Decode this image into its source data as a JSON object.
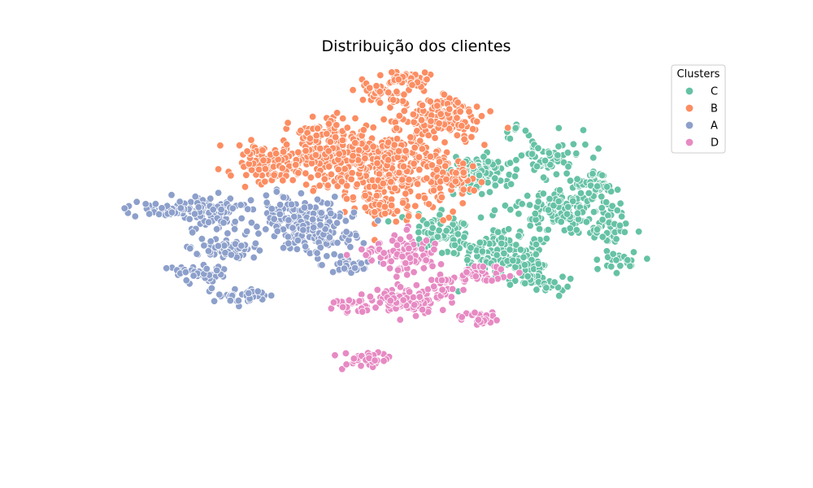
{
  "chart_data": {
    "type": "scatter",
    "title": "Distribuição dos clientes",
    "xlabel": "",
    "ylabel": "",
    "axes_visible": false,
    "grid": false,
    "xlim": [
      0,
      100
    ],
    "ylim": [
      0,
      100
    ],
    "legend": {
      "title": "Clusters",
      "placement": "top-right",
      "entries": [
        "C",
        "B",
        "A",
        "D"
      ]
    },
    "series": [
      {
        "name": "C",
        "color": "#66c2a5",
        "clusters": [
          {
            "cx": 61.8,
            "cy": 72.2,
            "sx": 2.3,
            "sy": 2.5,
            "n": 150
          },
          {
            "cx": 55.8,
            "cy": 55.7,
            "sx": 2.2,
            "sy": 2.6,
            "n": 80
          },
          {
            "cx": 65.4,
            "cy": 50.3,
            "sx": 3.5,
            "sy": 3.3,
            "n": 170
          },
          {
            "cx": 76.0,
            "cy": 62.3,
            "sx": 4.5,
            "sy": 3.0,
            "n": 130
          },
          {
            "cx": 80.8,
            "cy": 69.9,
            "sx": 1.8,
            "sy": 1.8,
            "n": 50
          },
          {
            "cx": 73.0,
            "cy": 77.1,
            "sx": 2.7,
            "sy": 2.5,
            "n": 70
          },
          {
            "cx": 82.5,
            "cy": 56.8,
            "sx": 1.6,
            "sy": 1.4,
            "n": 30
          },
          {
            "cx": 84.8,
            "cy": 48.9,
            "sx": 1.5,
            "sy": 1.2,
            "n": 25
          },
          {
            "cx": 72.5,
            "cy": 42.4,
            "sx": 1.9,
            "sy": 1.3,
            "n": 35
          },
          {
            "cx": 67.6,
            "cy": 84.4,
            "sx": 1.2,
            "sy": 1.5,
            "n": 8
          }
        ]
      },
      {
        "name": "B",
        "color": "#fc8d62",
        "clusters": [
          {
            "cx": 45.8,
            "cy": 75.7,
            "sx": 5.5,
            "sy": 5.3,
            "n": 380
          },
          {
            "cx": 28.0,
            "cy": 75.7,
            "sx": 3.6,
            "sy": 2.8,
            "n": 120
          },
          {
            "cx": 36.9,
            "cy": 82.4,
            "sx": 2.8,
            "sy": 3.2,
            "n": 90
          },
          {
            "cx": 55.3,
            "cy": 87.9,
            "sx": 3.4,
            "sy": 3.1,
            "n": 150
          },
          {
            "cx": 49.8,
            "cy": 98.8,
            "sx": 2.3,
            "sy": 1.9,
            "n": 50
          },
          {
            "cx": 46.0,
            "cy": 94.3,
            "sx": 2.5,
            "sy": 2.0,
            "n": 40
          },
          {
            "cx": 56.7,
            "cy": 72.1,
            "sx": 2.5,
            "sy": 3.0,
            "n": 60
          },
          {
            "cx": 45.9,
            "cy": 63.2,
            "sx": 3.0,
            "sy": 2.2,
            "n": 70
          }
        ]
      },
      {
        "name": "A",
        "color": "#8da0cb",
        "clusters": [
          {
            "cx": 18.5,
            "cy": 62.1,
            "sx": 2.6,
            "sy": 2.6,
            "n": 80
          },
          {
            "cx": 30.8,
            "cy": 61.1,
            "sx": 3.0,
            "sy": 2.8,
            "n": 110
          },
          {
            "cx": 36.0,
            "cy": 56.4,
            "sx": 2.8,
            "sy": 3.3,
            "n": 120
          },
          {
            "cx": 10.6,
            "cy": 62.6,
            "sx": 2.8,
            "sy": 1.0,
            "n": 35
          },
          {
            "cx": 20.3,
            "cy": 52.1,
            "sx": 2.8,
            "sy": 1.3,
            "n": 60
          },
          {
            "cx": 16.6,
            "cy": 45.3,
            "sx": 2.7,
            "sy": 1.1,
            "n": 45
          },
          {
            "cx": 23.0,
            "cy": 38.9,
            "sx": 2.7,
            "sy": 1.0,
            "n": 40
          },
          {
            "cx": 41.2,
            "cy": 47.4,
            "sx": 2.0,
            "sy": 1.0,
            "n": 30
          },
          {
            "cx": 20.3,
            "cy": 62.9,
            "sx": 1.2,
            "sy": 1.0,
            "n": 15
          }
        ]
      },
      {
        "name": "D",
        "color": "#e78ac3",
        "clusters": [
          {
            "cx": 50.2,
            "cy": 50.5,
            "sx": 2.5,
            "sy": 2.6,
            "n": 80
          },
          {
            "cx": 51.0,
            "cy": 37.9,
            "sx": 3.2,
            "sy": 1.7,
            "n": 110
          },
          {
            "cx": 41.2,
            "cy": 36.9,
            "sx": 2.0,
            "sy": 1.0,
            "n": 35
          },
          {
            "cx": 62.1,
            "cy": 45.0,
            "sx": 2.2,
            "sy": 1.4,
            "n": 40
          },
          {
            "cx": 62.2,
            "cy": 33.2,
            "sx": 1.8,
            "sy": 0.9,
            "n": 30
          },
          {
            "cx": 42.7,
            "cy": 21.9,
            "sx": 2.0,
            "sy": 1.1,
            "n": 40
          },
          {
            "cx": 44.5,
            "cy": 51.0,
            "sx": 2.2,
            "sy": 1.1,
            "n": 18
          },
          {
            "cx": 55.8,
            "cy": 41.2,
            "sx": 1.4,
            "sy": 1.4,
            "n": 15
          }
        ]
      }
    ]
  }
}
